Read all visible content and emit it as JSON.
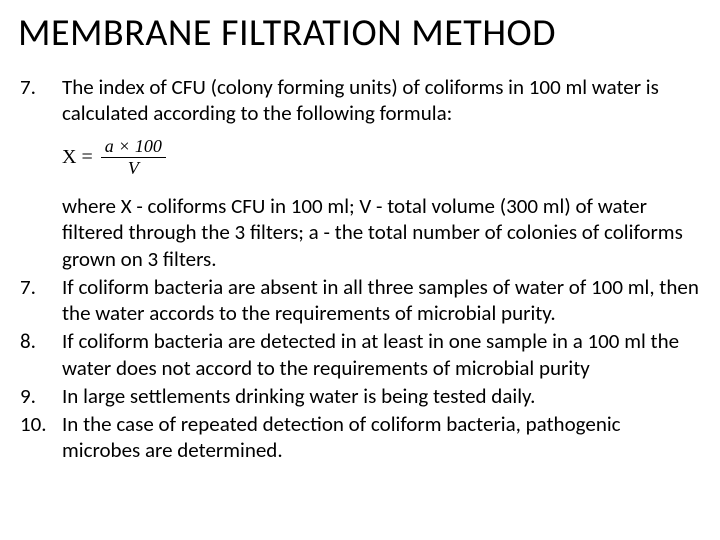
{
  "title": "MEMBRANE FILTRATION METHOD",
  "items": {
    "i1": {
      "num": "7.",
      "text": "The index of CFU (colony forming units) of coliforms in 100 ml water is calculated according to the following formula:"
    },
    "formula": {
      "lhs": "X =",
      "num": "a × 100",
      "den": "V"
    },
    "where": "where X - coliforms CFU in 100 ml; V - total volume (300 ml) of water filtered through the 3 filters; a - the total number of colonies of coliforms grown on 3 filters.",
    "i2": {
      "num": "7.",
      "text": "If coliform bacteria are absent in all three samples of water of 100 ml, then the water accords to the requirements of microbial purity."
    },
    "i3": {
      "num": "8.",
      "text": "If coliform bacteria are detected in at least in one sample in a 100 ml the water does not accord to the requirements of microbial purity"
    },
    "i4": {
      "num": "9.",
      "text": "In large settlements drinking water is being tested daily."
    },
    "i5": {
      "num": "10.",
      "text": "In the case of repeated detection of coliform bacteria, pathogenic microbes are determined."
    }
  }
}
